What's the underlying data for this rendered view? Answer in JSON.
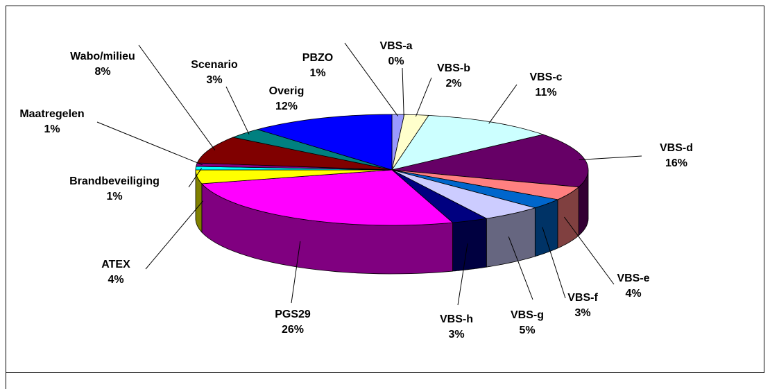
{
  "chart_data": {
    "type": "pie3d",
    "categories": [
      "PBZO",
      "VBS-a",
      "VBS-b",
      "VBS-c",
      "VBS-d",
      "VBS-e",
      "VBS-f",
      "VBS-g",
      "VBS-h",
      "PGS29",
      "ATEX",
      "Brandbeveiliging",
      "Maatregelen",
      "Wabo/milieu",
      "Scenario",
      "Overig"
    ],
    "values": [
      1,
      0,
      2,
      11,
      16,
      4,
      3,
      5,
      3,
      26,
      4,
      1,
      1,
      8,
      3,
      12
    ],
    "value_labels": [
      "1%",
      "0%",
      "2%",
      "11%",
      "16%",
      "4%",
      "3%",
      "5%",
      "3%",
      "26%",
      "4%",
      "1%",
      "1%",
      "8%",
      "3%",
      "12%"
    ],
    "colors": [
      "#9999ff",
      "#993366",
      "#ffffcc",
      "#ccffff",
      "#660066",
      "#ff8080",
      "#0066cc",
      "#ccccff",
      "#000080",
      "#ff00ff",
      "#ffff00",
      "#00ffff",
      "#800080",
      "#800000",
      "#008080",
      "#0000ff"
    ]
  }
}
